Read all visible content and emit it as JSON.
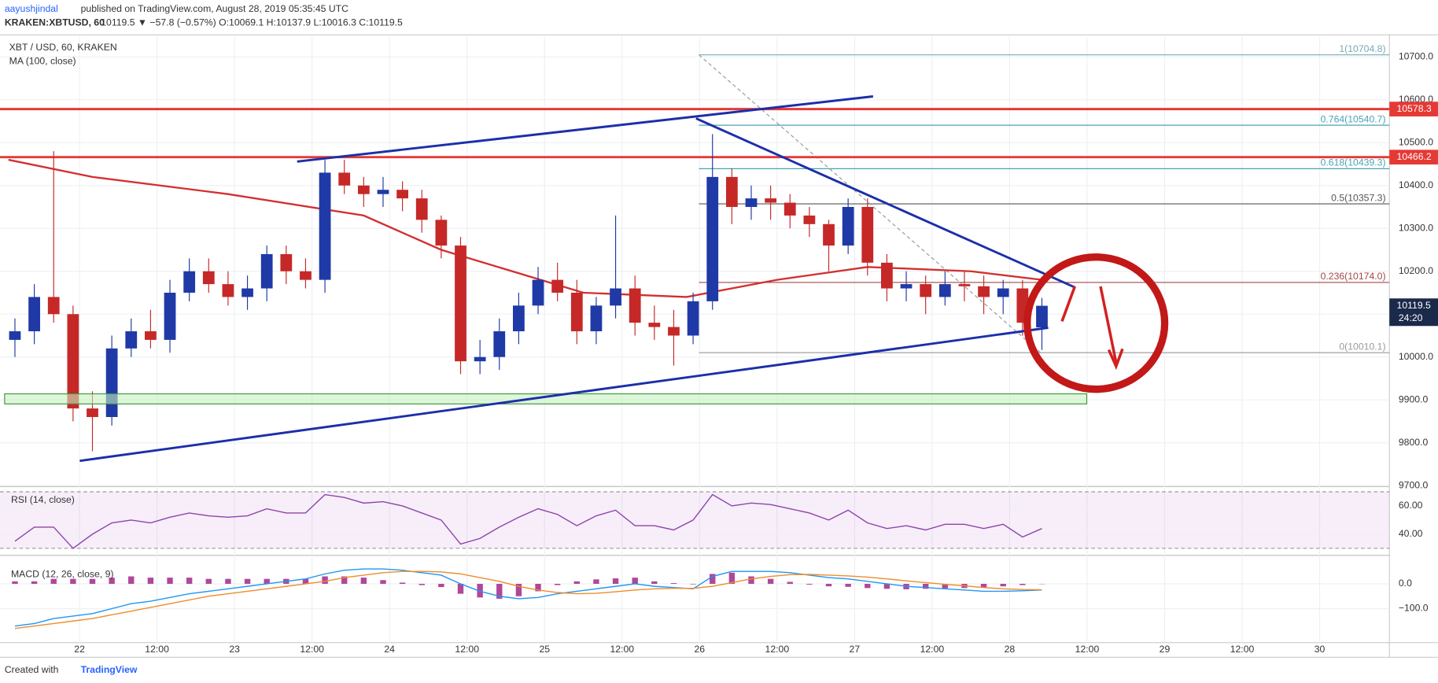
{
  "header": {
    "author": "aayushjindal",
    "published": "published on TradingView.com, August 28, 2019 05:35:45 UTC",
    "symbol": "KRAKEN:XBTUSD, 60",
    "quote": "10119.5 ▼ −57.8 (−0.57%) O:10069.1 H:10137.9 L:10016.3 C:10119.5"
  },
  "footer": {
    "created": "Created with",
    "brand": "TradingView"
  },
  "chart_data": [
    {
      "type": "candlestick",
      "title": "XBT / USD, 60, KRAKEN",
      "indicator": "MA (100, close)",
      "xlim": [
        -11.6,
        202.8
      ],
      "ylim": [
        9700,
        10740
      ],
      "xticks": [
        {
          "value": 0,
          "label": "22"
        },
        {
          "value": 12,
          "label": "12:00"
        },
        {
          "value": 24,
          "label": "23"
        },
        {
          "value": 36,
          "label": "12:00"
        },
        {
          "value": 48,
          "label": "24"
        },
        {
          "value": 60,
          "label": "12:00"
        },
        {
          "value": 72,
          "label": "25"
        },
        {
          "value": 84,
          "label": "12:00"
        },
        {
          "value": 96,
          "label": "26"
        },
        {
          "value": 108,
          "label": "12:00"
        },
        {
          "value": 120,
          "label": "27"
        },
        {
          "value": 132,
          "label": "12:00"
        },
        {
          "value": 144,
          "label": "28"
        },
        {
          "value": 156,
          "label": "12:00"
        },
        {
          "value": 168,
          "label": "29"
        },
        {
          "value": 180,
          "label": "12:00"
        },
        {
          "value": 192,
          "label": "30"
        }
      ],
      "yticks": [
        {
          "value": 9700,
          "label": "9700.0"
        },
        {
          "value": 9800,
          "label": "9800.0"
        },
        {
          "value": 9900,
          "label": "9900.0"
        },
        {
          "value": 10000,
          "label": "10000.0"
        },
        {
          "value": 10100,
          "label": "10100.0"
        },
        {
          "value": 10200,
          "label": "10200.0"
        },
        {
          "value": 10300,
          "label": "10300.0"
        },
        {
          "value": 10400,
          "label": "10400.0"
        },
        {
          "value": 10500,
          "label": "10500.0"
        },
        {
          "value": 10600,
          "label": "10600.0"
        },
        {
          "value": 10700,
          "label": "10700.0"
        }
      ],
      "grid": true,
      "up_color": "#1f3aa6",
      "down_color": "#c62828",
      "x": [
        -10,
        -7,
        -4,
        -1,
        2,
        5,
        8,
        11,
        14,
        17,
        20,
        23,
        26,
        29,
        32,
        35,
        38,
        41,
        44,
        47,
        50,
        53,
        56,
        59,
        62,
        65,
        68,
        71,
        74,
        77,
        80,
        83,
        86,
        89,
        92,
        95,
        98,
        101,
        104,
        107,
        110,
        113,
        116,
        119,
        122,
        125,
        128,
        131,
        134,
        137,
        140,
        143,
        146,
        149
      ],
      "open": [
        10040,
        10060,
        10140,
        10100,
        9880,
        9860,
        10020,
        10060,
        10040,
        10150,
        10200,
        10170,
        10140,
        10160,
        10240,
        10200,
        10180,
        10430,
        10400,
        10380,
        10390,
        10370,
        10320,
        10260,
        9990,
        10000,
        10060,
        10120,
        10180,
        10150,
        10060,
        10120,
        10160,
        10080,
        10070,
        10050,
        10130,
        10420,
        10350,
        10370,
        10360,
        10330,
        10310,
        10260,
        10350,
        10220,
        10160,
        10170,
        10140,
        10170,
        10165,
        10140,
        10160,
        10069.1
      ],
      "high": [
        10090,
        10170,
        10480,
        10120,
        9920,
        10050,
        10090,
        10110,
        10180,
        10230,
        10230,
        10200,
        10190,
        10260,
        10260,
        10230,
        10460,
        10460,
        10420,
        10420,
        10410,
        10390,
        10330,
        10280,
        10040,
        10090,
        10150,
        10210,
        10220,
        10180,
        10140,
        10330,
        10190,
        10120,
        10110,
        10150,
        10520,
        10440,
        10400,
        10400,
        10380,
        10350,
        10320,
        10370,
        10370,
        10240,
        10200,
        10190,
        10200,
        10200,
        10190,
        10180,
        10180,
        10137.9
      ],
      "low": [
        10000,
        10030,
        10080,
        9850,
        9780,
        9840,
        10000,
        10020,
        10010,
        10130,
        10150,
        10120,
        10110,
        10130,
        10170,
        10160,
        10150,
        10380,
        10350,
        10350,
        10340,
        10290,
        10230,
        9960,
        9960,
        9970,
        10030,
        10100,
        10130,
        10030,
        10030,
        10090,
        10050,
        10040,
        9980,
        10030,
        10110,
        10310,
        10320,
        10320,
        10300,
        10280,
        10200,
        10240,
        10190,
        10130,
        10130,
        10100,
        10120,
        10130,
        10100,
        10100,
        10050,
        10016.3
      ],
      "close": [
        10060,
        10140,
        10100,
        9880,
        9860,
        10020,
        10060,
        10040,
        10150,
        10200,
        10170,
        10140,
        10160,
        10240,
        10200,
        10180,
        10430,
        10400,
        10380,
        10390,
        10370,
        10320,
        10260,
        9990,
        10000,
        10060,
        10120,
        10180,
        10150,
        10060,
        10120,
        10160,
        10080,
        10070,
        10050,
        10130,
        10420,
        10350,
        10370,
        10360,
        10330,
        10310,
        10260,
        10350,
        10220,
        10160,
        10170,
        10140,
        10170,
        10165,
        10140,
        10160,
        10080,
        10119.5
      ],
      "ma": {
        "color": "#d32f2f",
        "x": [
          -11,
          2,
          23,
          44,
          56,
          67,
          78,
          94,
          108,
          122,
          138,
          149
        ],
        "values": [
          10460,
          10420,
          10380,
          10330,
          10250,
          10200,
          10150,
          10140,
          10180,
          10210,
          10200,
          10180
        ]
      },
      "levels": [
        {
          "value": 10578.3,
          "label": "10578.3",
          "color": "#e53935"
        },
        {
          "value": 10466.2,
          "label": "10466.2",
          "color": "#e53935"
        }
      ],
      "last": {
        "value": 10119.5,
        "label": "10119.5",
        "countdown": "24:20"
      },
      "fib": {
        "x": [
          95.9,
          148.8
        ],
        "levels": [
          {
            "value": 10704.8,
            "label": "1(10704.8)",
            "color": "#78a9b5"
          },
          {
            "value": 10540.7,
            "label": "0.764(10540.7)",
            "color": "#4aa3b5"
          },
          {
            "value": 10439.3,
            "label": "0.618(10439.3)",
            "color": "#4aa3b5"
          },
          {
            "value": 10357.3,
            "label": "0.5(10357.3)",
            "color": "#555555"
          },
          {
            "value": 10174.0,
            "label": "0.236(10174.0)",
            "color": "#a04848"
          },
          {
            "value": 10010.1,
            "label": "0(10010.1)",
            "color": "#999999"
          }
        ]
      }
    },
    {
      "type": "line",
      "title": "RSI (14, close)",
      "ylim": [
        25,
        75
      ],
      "band": [
        30,
        70
      ],
      "color": "#8e44ad",
      "yticks": [
        {
          "value": 40,
          "label": "40.00"
        },
        {
          "value": 60,
          "label": "60.00"
        }
      ],
      "values": [
        35,
        45,
        45,
        30,
        40,
        48,
        50,
        48,
        52,
        55,
        53,
        52,
        53,
        58,
        55,
        55,
        68,
        66,
        62,
        63,
        60,
        55,
        50,
        33,
        37,
        45,
        52,
        58,
        54,
        46,
        53,
        57,
        46,
        46,
        43,
        50,
        68,
        60,
        62,
        61,
        58,
        55,
        50,
        57,
        48,
        44,
        46,
        43,
        47,
        47,
        44,
        47,
        38,
        44
      ]
    },
    {
      "type": "macd",
      "title": "MACD (12, 26, close, 9)",
      "ylim": [
        -237,
        111
      ],
      "yticks": [
        {
          "value": 0,
          "label": "0.0"
        },
        {
          "value": -100,
          "label": "−100.0"
        }
      ],
      "series": [
        {
          "color": "#2196f3",
          "values": [
            -170,
            -160,
            -140,
            -130,
            -120,
            -100,
            -80,
            -70,
            -55,
            -40,
            -30,
            -20,
            -10,
            0,
            10,
            20,
            40,
            55,
            60,
            60,
            55,
            45,
            35,
            0,
            -30,
            -50,
            -60,
            -55,
            -40,
            -30,
            -20,
            -10,
            0,
            -10,
            -15,
            -20,
            30,
            50,
            50,
            50,
            45,
            35,
            25,
            20,
            10,
            0,
            -10,
            -15,
            -20,
            -25,
            -30,
            -30,
            -28,
            -25
          ]
        },
        {
          "color": "#ef8c2b",
          "values": [
            -180,
            -170,
            -160,
            -150,
            -140,
            -125,
            -110,
            -95,
            -80,
            -65,
            -50,
            -40,
            -30,
            -20,
            -10,
            0,
            10,
            25,
            35,
            45,
            50,
            50,
            48,
            40,
            25,
            10,
            -10,
            -25,
            -35,
            -40,
            -38,
            -32,
            -25,
            -20,
            -18,
            -18,
            -10,
            5,
            20,
            30,
            37,
            38,
            35,
            32,
            27,
            20,
            12,
            5,
            -2,
            -8,
            -15,
            -20,
            -23,
            -24
          ]
        }
      ],
      "histogram": {
        "color": "#b0479a",
        "values": [
          10,
          10,
          20,
          20,
          20,
          25,
          30,
          25,
          25,
          25,
          20,
          20,
          20,
          20,
          20,
          20,
          30,
          30,
          25,
          15,
          5,
          -5,
          -13,
          -40,
          -55,
          -60,
          -50,
          -30,
          -5,
          10,
          18,
          22,
          25,
          10,
          3,
          -2,
          40,
          45,
          30,
          20,
          8,
          -3,
          -10,
          -12,
          -17,
          -20,
          -22,
          -20,
          -18,
          -17,
          -15,
          -10,
          -5,
          -1
        ]
      }
    }
  ]
}
